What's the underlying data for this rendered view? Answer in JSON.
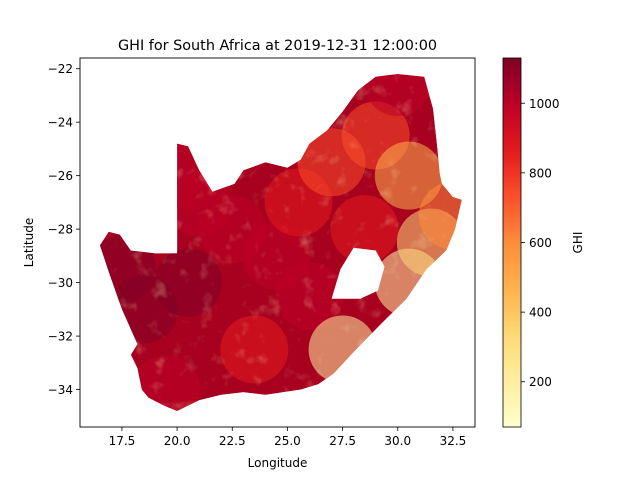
{
  "chart_data": {
    "type": "scatter",
    "title": "GHI for South Africa at 2019-12-31 12:00:00",
    "xlabel": "Longitude",
    "ylabel": "Latitude",
    "xlim": [
      15.6,
      33.5
    ],
    "ylim": [
      -35.4,
      -21.6
    ],
    "xticks": [
      17.5,
      20.0,
      22.5,
      25.0,
      27.5,
      30.0,
      32.5
    ],
    "yticks": [
      -22,
      -24,
      -26,
      -28,
      -30,
      -32,
      -34
    ],
    "xtick_labels": [
      "17.5",
      "20.0",
      "22.5",
      "25.0",
      "27.5",
      "30.0",
      "32.5"
    ],
    "ytick_labels": [
      "−22",
      "−24",
      "−26",
      "−28",
      "−30",
      "−32",
      "−34"
    ],
    "colorbar": {
      "label": "GHI",
      "cmap": "YlOrRd",
      "vmin": 70,
      "vmax": 1130,
      "ticks": [
        200,
        400,
        600,
        800,
        1000
      ],
      "tick_labels": [
        "200",
        "400",
        "600",
        "800",
        "1000"
      ],
      "colors": [
        "#ffffcc",
        "#ffeda0",
        "#fed976",
        "#feb24c",
        "#fd8d3c",
        "#fc4e2a",
        "#e31a1c",
        "#bd0026",
        "#800026"
      ]
    },
    "region_samples": [
      {
        "lon": 17.5,
        "lat": -29.5,
        "ghi": 1100
      },
      {
        "lon": 18.5,
        "lat": -31.0,
        "ghi": 1110
      },
      {
        "lon": 20.5,
        "lat": -30.0,
        "ghi": 1090
      },
      {
        "lon": 21.0,
        "lat": -27.0,
        "ghi": 1060
      },
      {
        "lon": 20.5,
        "lat": -26.0,
        "ghi": 1040
      },
      {
        "lon": 22.5,
        "lat": -28.0,
        "ghi": 1020
      },
      {
        "lon": 23.5,
        "lat": -32.5,
        "ghi": 900
      },
      {
        "lon": 24.5,
        "lat": -29.0,
        "ghi": 980
      },
      {
        "lon": 25.5,
        "lat": -27.0,
        "ghi": 820
      },
      {
        "lon": 26.0,
        "lat": -30.5,
        "ghi": 950
      },
      {
        "lon": 27.0,
        "lat": -25.5,
        "ghi": 700
      },
      {
        "lon": 27.5,
        "lat": -32.5,
        "ghi": 250
      },
      {
        "lon": 28.5,
        "lat": -28.0,
        "ghi": 850
      },
      {
        "lon": 29.0,
        "lat": -24.5,
        "ghi": 750
      },
      {
        "lon": 30.0,
        "lat": -22.5,
        "ghi": 980
      },
      {
        "lon": 30.5,
        "lat": -26.0,
        "ghi": 500
      },
      {
        "lon": 30.5,
        "lat": -30.0,
        "ghi": 200
      },
      {
        "lon": 31.5,
        "lat": -28.5,
        "ghi": 300
      },
      {
        "lon": 32.5,
        "lat": -27.5,
        "ghi": 650
      },
      {
        "lon": 19.5,
        "lat": -34.0,
        "ghi": 1000
      }
    ]
  }
}
